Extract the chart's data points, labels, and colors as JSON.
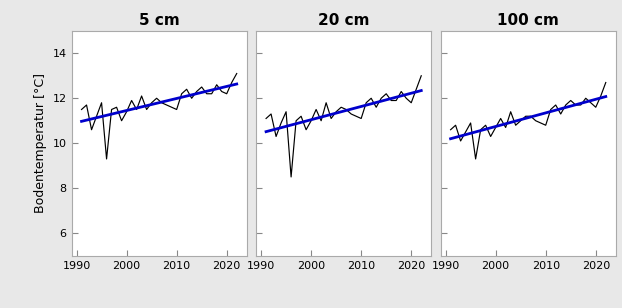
{
  "titles": [
    "5 cm",
    "20 cm",
    "100 cm"
  ],
  "ylabel": "Bodentemperatur [°C]",
  "xlim": [
    1989,
    2024
  ],
  "ylim": [
    5,
    15
  ],
  "yticks": [
    6,
    8,
    10,
    12,
    14
  ],
  "xticks": [
    1990,
    2000,
    2010,
    2020
  ],
  "bg_color": "#e8e8e8",
  "plot_bg_color": "#ffffff",
  "line_color": "#000000",
  "trend_color": "#0000cc",
  "series": {
    "5cm": {
      "x": [
        1991,
        1992,
        1993,
        1994,
        1995,
        1996,
        1997,
        1998,
        1999,
        2000,
        2001,
        2002,
        2003,
        2004,
        2005,
        2006,
        2007,
        2008,
        2009,
        2010,
        2011,
        2012,
        2013,
        2014,
        2015,
        2016,
        2017,
        2018,
        2019,
        2020,
        2021,
        2022
      ],
      "y": [
        11.5,
        11.7,
        10.6,
        11.2,
        11.8,
        9.3,
        11.5,
        11.6,
        11.0,
        11.4,
        11.9,
        11.5,
        12.1,
        11.5,
        11.8,
        12.0,
        11.8,
        11.7,
        11.6,
        11.5,
        12.2,
        12.4,
        12.0,
        12.3,
        12.5,
        12.2,
        12.2,
        12.6,
        12.3,
        12.2,
        12.7,
        13.1
      ]
    },
    "20cm": {
      "x": [
        1991,
        1992,
        1993,
        1994,
        1995,
        1996,
        1997,
        1998,
        1999,
        2000,
        2001,
        2002,
        2003,
        2004,
        2005,
        2006,
        2007,
        2008,
        2009,
        2010,
        2011,
        2012,
        2013,
        2014,
        2015,
        2016,
        2017,
        2018,
        2019,
        2020,
        2021,
        2022
      ],
      "y": [
        11.1,
        11.3,
        10.3,
        10.9,
        11.4,
        8.5,
        11.0,
        11.2,
        10.6,
        11.0,
        11.5,
        11.0,
        11.8,
        11.1,
        11.4,
        11.6,
        11.5,
        11.3,
        11.2,
        11.1,
        11.8,
        12.0,
        11.6,
        12.0,
        12.2,
        11.9,
        11.9,
        12.3,
        12.0,
        11.8,
        12.4,
        13.0
      ]
    },
    "100cm": {
      "x": [
        1991,
        1992,
        1993,
        1994,
        1995,
        1996,
        1997,
        1998,
        1999,
        2000,
        2001,
        2002,
        2003,
        2004,
        2005,
        2006,
        2007,
        2008,
        2009,
        2010,
        2011,
        2012,
        2013,
        2014,
        2015,
        2016,
        2017,
        2018,
        2019,
        2020,
        2021,
        2022
      ],
      "y": [
        10.6,
        10.8,
        10.1,
        10.5,
        10.9,
        9.3,
        10.6,
        10.8,
        10.3,
        10.7,
        11.1,
        10.7,
        11.4,
        10.8,
        11.0,
        11.2,
        11.2,
        11.0,
        10.9,
        10.8,
        11.5,
        11.7,
        11.3,
        11.7,
        11.9,
        11.7,
        11.7,
        12.0,
        11.8,
        11.6,
        12.1,
        12.7
      ]
    }
  },
  "title_fontsize": 11,
  "label_fontsize": 9,
  "tick_fontsize": 8
}
